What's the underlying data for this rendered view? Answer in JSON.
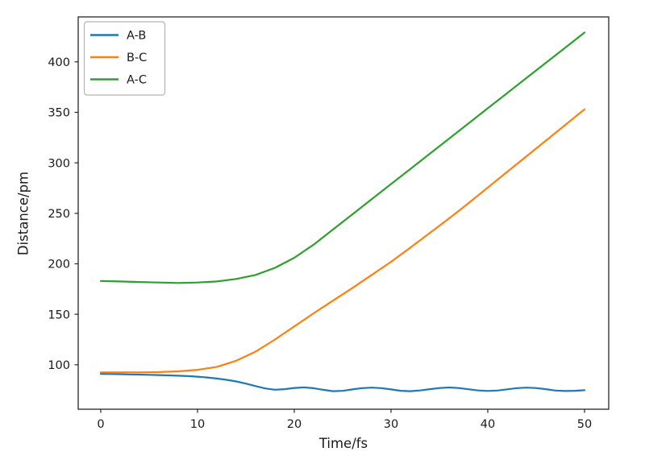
{
  "chart_data": {
    "type": "line",
    "title": "",
    "xlabel": "Time/fs",
    "ylabel": "Distance/pm",
    "xlim": [
      -2.33,
      52.5
    ],
    "ylim": [
      56,
      444.5
    ],
    "x_ticks": [
      0,
      10,
      20,
      30,
      40,
      50
    ],
    "y_ticks": [
      100,
      150,
      200,
      250,
      300,
      350,
      400
    ],
    "grid": false,
    "legend": {
      "position": "upper left",
      "entries": [
        "A-B",
        "B-C",
        "A-C"
      ]
    },
    "series": [
      {
        "name": "A-B",
        "color": "#1f77b4",
        "x": [
          0,
          1,
          2,
          3,
          4,
          5,
          6,
          7,
          8,
          9,
          10,
          11,
          12,
          13,
          14,
          15,
          16,
          17,
          18,
          19,
          20,
          21,
          22,
          23,
          24,
          25,
          26,
          27,
          28,
          29,
          30,
          31,
          32,
          33,
          34,
          35,
          36,
          37,
          38,
          39,
          40,
          41,
          42,
          43,
          44,
          45,
          46,
          47,
          48,
          49,
          50
        ],
        "values": [
          91.0,
          90.9,
          90.7,
          90.5,
          90.3,
          90.1,
          89.8,
          89.5,
          89.2,
          88.8,
          88.2,
          87.4,
          86.4,
          85.1,
          83.5,
          81.4,
          78.9,
          76.6,
          75.3,
          75.9,
          77.1,
          77.6,
          76.8,
          75.2,
          73.9,
          74.2,
          75.6,
          76.9,
          77.4,
          76.9,
          75.6,
          74.3,
          73.9,
          74.6,
          75.9,
          77.0,
          77.5,
          77.0,
          75.8,
          74.6,
          74.1,
          74.5,
          75.7,
          76.9,
          77.4,
          77.0,
          75.9,
          74.5,
          74.0,
          74.3,
          74.8
        ]
      },
      {
        "name": "B-C",
        "color": "#ff7f0e",
        "x": [
          0,
          2,
          4,
          6,
          8,
          10,
          12,
          14,
          16,
          18,
          20,
          22,
          24,
          26,
          28,
          30,
          32,
          34,
          36,
          38,
          40,
          42,
          44,
          46,
          48,
          50
        ],
        "values": [
          92.5,
          92.5,
          92.5,
          92.8,
          93.5,
          95.0,
          98.0,
          104.0,
          113.0,
          125.0,
          138.0,
          151.0,
          163.5,
          176.0,
          189.0,
          202.0,
          216.0,
          230.5,
          245.0,
          260.0,
          275.5,
          291.0,
          306.5,
          322.0,
          337.5,
          353.0
        ]
      },
      {
        "name": "A-C",
        "color": "#2ca02c",
        "x": [
          0,
          2,
          4,
          6,
          8,
          10,
          12,
          14,
          16,
          18,
          20,
          22,
          24,
          26,
          28,
          30,
          32,
          34,
          36,
          38,
          40,
          42,
          44,
          46,
          48,
          50
        ],
        "values": [
          183.0,
          182.5,
          182.0,
          181.5,
          181.0,
          181.5,
          182.5,
          185.0,
          189.0,
          196.0,
          206.0,
          219.0,
          234.0,
          249.0,
          264.0,
          279.0,
          294.0,
          309.0,
          324.0,
          339.0,
          354.0,
          369.0,
          384.0,
          399.0,
          414.0,
          429.0
        ]
      }
    ],
    "colors": {
      "text": "#1a1a1a",
      "spine": "#262626",
      "legend_border": "#b3b3b3",
      "background": "#ffffff"
    }
  }
}
